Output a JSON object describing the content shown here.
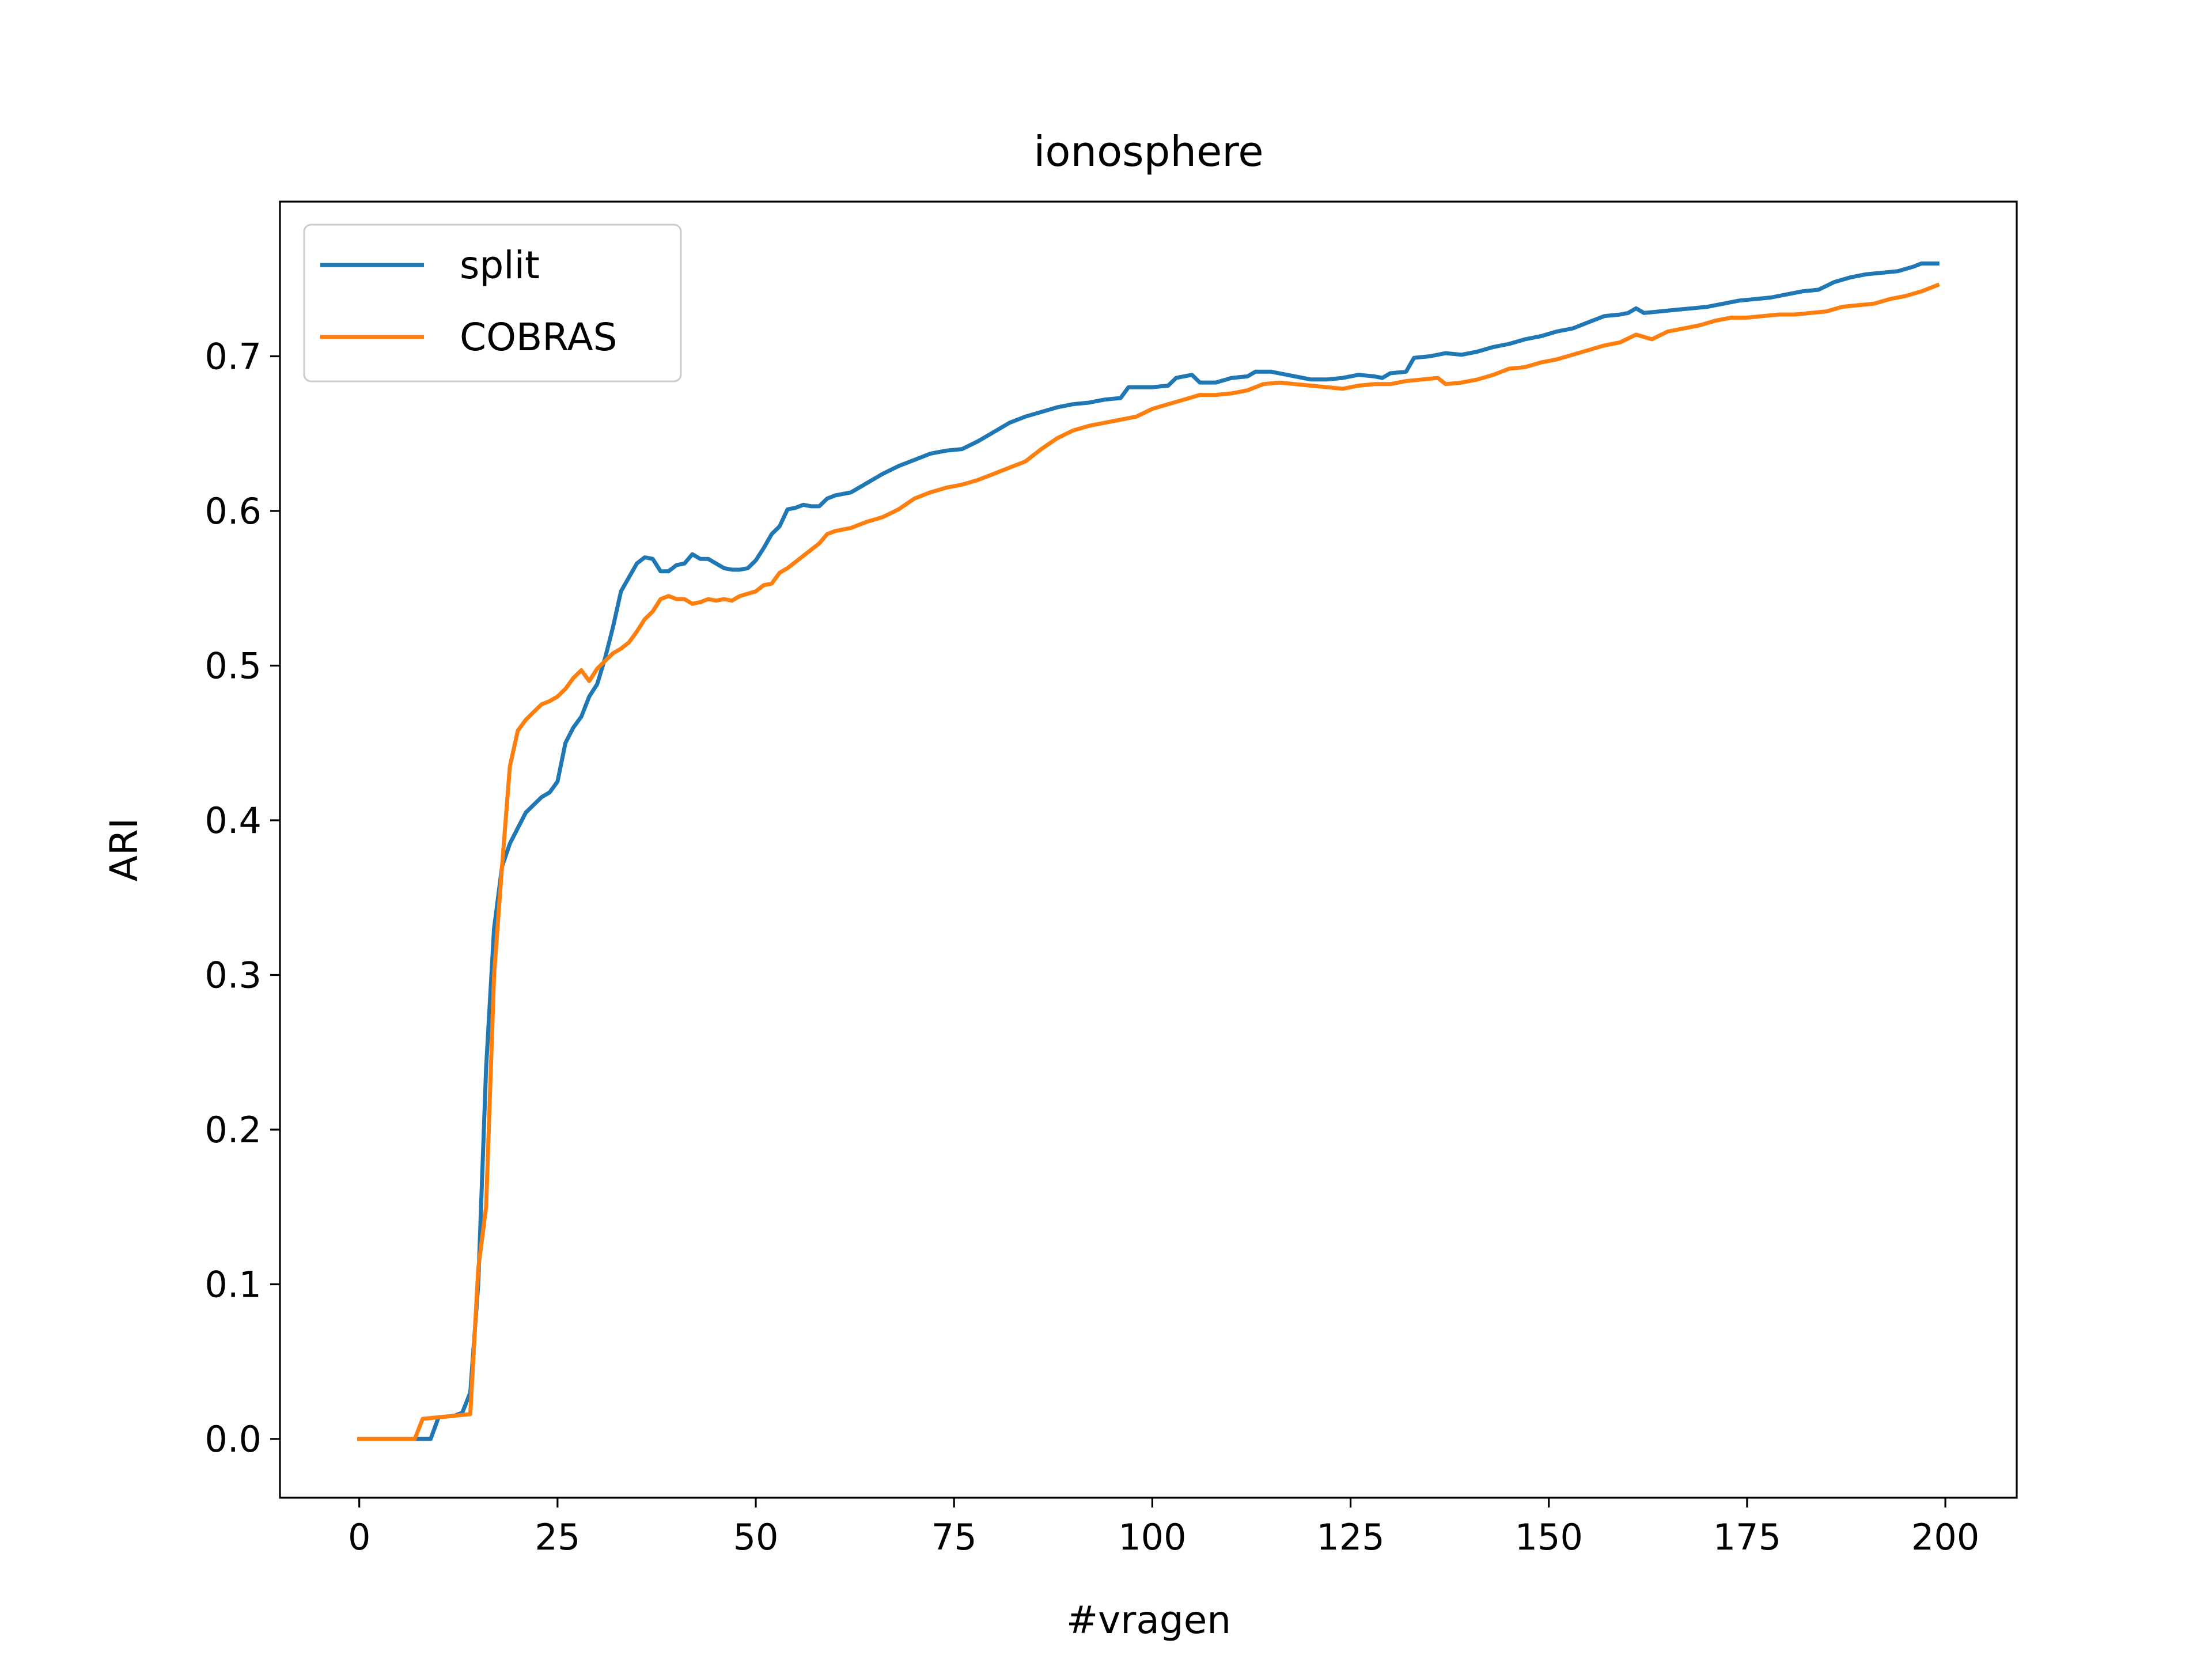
{
  "chart_data": {
    "type": "line",
    "title": "ionosphere",
    "xlabel": "#vragen",
    "ylabel": "ARI",
    "xlim": [
      -10,
      209
    ],
    "ylim": [
      -0.038,
      0.8
    ],
    "xticks": [
      0,
      25,
      50,
      75,
      100,
      125,
      150,
      175,
      200
    ],
    "xtick_labels": [
      "0",
      "25",
      "50",
      "75",
      "100",
      "125",
      "150",
      "175",
      "200"
    ],
    "yticks": [
      0.0,
      0.1,
      0.2,
      0.3,
      0.4,
      0.5,
      0.6,
      0.7
    ],
    "ytick_labels": [
      "0.0",
      "0.1",
      "0.2",
      "0.3",
      "0.4",
      "0.5",
      "0.6",
      "0.7"
    ],
    "grid": false,
    "legend_position": "upper-left",
    "series": [
      {
        "name": "split",
        "color": "#1f77b4",
        "points": [
          [
            0,
            0.0
          ],
          [
            7,
            0.0
          ],
          [
            9,
            0.0
          ],
          [
            10,
            0.014
          ],
          [
            12,
            0.015
          ],
          [
            13,
            0.017
          ],
          [
            14,
            0.03
          ],
          [
            15,
            0.1
          ],
          [
            16,
            0.24
          ],
          [
            17,
            0.33
          ],
          [
            18,
            0.37
          ],
          [
            19,
            0.385
          ],
          [
            20,
            0.395
          ],
          [
            21,
            0.405
          ],
          [
            22,
            0.41
          ],
          [
            23,
            0.415
          ],
          [
            24,
            0.418
          ],
          [
            25,
            0.425
          ],
          [
            26,
            0.45
          ],
          [
            27,
            0.46
          ],
          [
            28,
            0.467
          ],
          [
            29,
            0.48
          ],
          [
            30,
            0.488
          ],
          [
            31,
            0.505
          ],
          [
            32,
            0.525
          ],
          [
            33,
            0.548
          ],
          [
            34,
            0.557
          ],
          [
            35,
            0.566
          ],
          [
            36,
            0.57
          ],
          [
            37,
            0.569
          ],
          [
            38,
            0.561
          ],
          [
            39,
            0.561
          ],
          [
            40,
            0.565
          ],
          [
            41,
            0.566
          ],
          [
            42,
            0.572
          ],
          [
            43,
            0.569
          ],
          [
            44,
            0.569
          ],
          [
            45,
            0.566
          ],
          [
            46,
            0.563
          ],
          [
            47,
            0.562
          ],
          [
            48,
            0.562
          ],
          [
            49,
            0.563
          ],
          [
            50,
            0.568
          ],
          [
            51,
            0.576
          ],
          [
            52,
            0.585
          ],
          [
            53,
            0.59
          ],
          [
            54,
            0.601
          ],
          [
            55,
            0.602
          ],
          [
            56,
            0.604
          ],
          [
            57,
            0.603
          ],
          [
            58,
            0.603
          ],
          [
            59,
            0.608
          ],
          [
            60,
            0.61
          ],
          [
            62,
            0.612
          ],
          [
            64,
            0.618
          ],
          [
            66,
            0.624
          ],
          [
            68,
            0.629
          ],
          [
            70,
            0.633
          ],
          [
            72,
            0.637
          ],
          [
            74,
            0.639
          ],
          [
            76,
            0.64
          ],
          [
            78,
            0.645
          ],
          [
            80,
            0.651
          ],
          [
            82,
            0.657
          ],
          [
            84,
            0.661
          ],
          [
            86,
            0.664
          ],
          [
            88,
            0.667
          ],
          [
            90,
            0.669
          ],
          [
            92,
            0.67
          ],
          [
            94,
            0.672
          ],
          [
            96,
            0.673
          ],
          [
            97,
            0.68
          ],
          [
            100,
            0.68
          ],
          [
            102,
            0.681
          ],
          [
            103,
            0.686
          ],
          [
            105,
            0.688
          ],
          [
            106,
            0.683
          ],
          [
            108,
            0.683
          ],
          [
            110,
            0.686
          ],
          [
            112,
            0.687
          ],
          [
            113,
            0.69
          ],
          [
            115,
            0.69
          ],
          [
            118,
            0.687
          ],
          [
            120,
            0.685
          ],
          [
            122,
            0.685
          ],
          [
            124,
            0.686
          ],
          [
            126,
            0.688
          ],
          [
            128,
            0.687
          ],
          [
            129,
            0.686
          ],
          [
            130,
            0.689
          ],
          [
            132,
            0.69
          ],
          [
            133,
            0.699
          ],
          [
            135,
            0.7
          ],
          [
            137,
            0.702
          ],
          [
            139,
            0.701
          ],
          [
            141,
            0.703
          ],
          [
            143,
            0.706
          ],
          [
            145,
            0.708
          ],
          [
            147,
            0.711
          ],
          [
            149,
            0.713
          ],
          [
            151,
            0.716
          ],
          [
            153,
            0.718
          ],
          [
            155,
            0.722
          ],
          [
            157,
            0.726
          ],
          [
            159,
            0.727
          ],
          [
            160,
            0.728
          ],
          [
            161,
            0.731
          ],
          [
            162,
            0.728
          ],
          [
            164,
            0.729
          ],
          [
            166,
            0.73
          ],
          [
            168,
            0.731
          ],
          [
            170,
            0.732
          ],
          [
            172,
            0.734
          ],
          [
            174,
            0.736
          ],
          [
            176,
            0.737
          ],
          [
            178,
            0.738
          ],
          [
            180,
            0.74
          ],
          [
            182,
            0.742
          ],
          [
            184,
            0.743
          ],
          [
            186,
            0.748
          ],
          [
            188,
            0.751
          ],
          [
            190,
            0.753
          ],
          [
            192,
            0.754
          ],
          [
            194,
            0.755
          ],
          [
            196,
            0.758
          ],
          [
            197,
            0.76
          ],
          [
            199,
            0.76
          ]
        ]
      },
      {
        "name": "COBRAS",
        "color": "#ff7f0e",
        "points": [
          [
            0,
            0.0
          ],
          [
            7,
            0.0
          ],
          [
            8,
            0.013
          ],
          [
            10,
            0.014
          ],
          [
            12,
            0.015
          ],
          [
            14,
            0.016
          ],
          [
            15,
            0.11
          ],
          [
            16,
            0.15
          ],
          [
            17,
            0.3
          ],
          [
            18,
            0.37
          ],
          [
            19,
            0.435
          ],
          [
            20,
            0.458
          ],
          [
            21,
            0.465
          ],
          [
            22,
            0.47
          ],
          [
            23,
            0.475
          ],
          [
            24,
            0.477
          ],
          [
            25,
            0.48
          ],
          [
            26,
            0.485
          ],
          [
            27,
            0.492
          ],
          [
            28,
            0.497
          ],
          [
            29,
            0.49
          ],
          [
            30,
            0.498
          ],
          [
            31,
            0.503
          ],
          [
            32,
            0.508
          ],
          [
            33,
            0.511
          ],
          [
            34,
            0.515
          ],
          [
            35,
            0.522
          ],
          [
            36,
            0.53
          ],
          [
            37,
            0.535
          ],
          [
            38,
            0.543
          ],
          [
            39,
            0.545
          ],
          [
            40,
            0.543
          ],
          [
            41,
            0.543
          ],
          [
            42,
            0.54
          ],
          [
            43,
            0.541
          ],
          [
            44,
            0.543
          ],
          [
            45,
            0.542
          ],
          [
            46,
            0.543
          ],
          [
            47,
            0.542
          ],
          [
            48,
            0.545
          ],
          [
            50,
            0.548
          ],
          [
            51,
            0.552
          ],
          [
            52,
            0.553
          ],
          [
            53,
            0.56
          ],
          [
            54,
            0.563
          ],
          [
            55,
            0.567
          ],
          [
            56,
            0.571
          ],
          [
            57,
            0.575
          ],
          [
            58,
            0.579
          ],
          [
            59,
            0.585
          ],
          [
            60,
            0.587
          ],
          [
            62,
            0.589
          ],
          [
            64,
            0.593
          ],
          [
            66,
            0.596
          ],
          [
            68,
            0.601
          ],
          [
            70,
            0.608
          ],
          [
            72,
            0.612
          ],
          [
            74,
            0.615
          ],
          [
            76,
            0.617
          ],
          [
            78,
            0.62
          ],
          [
            80,
            0.624
          ],
          [
            82,
            0.628
          ],
          [
            84,
            0.632
          ],
          [
            86,
            0.64
          ],
          [
            88,
            0.647
          ],
          [
            90,
            0.652
          ],
          [
            92,
            0.655
          ],
          [
            94,
            0.657
          ],
          [
            96,
            0.659
          ],
          [
            98,
            0.661
          ],
          [
            100,
            0.666
          ],
          [
            102,
            0.669
          ],
          [
            104,
            0.672
          ],
          [
            106,
            0.675
          ],
          [
            108,
            0.675
          ],
          [
            110,
            0.676
          ],
          [
            112,
            0.678
          ],
          [
            114,
            0.682
          ],
          [
            116,
            0.683
          ],
          [
            118,
            0.682
          ],
          [
            120,
            0.681
          ],
          [
            122,
            0.68
          ],
          [
            124,
            0.679
          ],
          [
            126,
            0.681
          ],
          [
            128,
            0.682
          ],
          [
            130,
            0.682
          ],
          [
            132,
            0.684
          ],
          [
            134,
            0.685
          ],
          [
            136,
            0.686
          ],
          [
            137,
            0.682
          ],
          [
            139,
            0.683
          ],
          [
            141,
            0.685
          ],
          [
            143,
            0.688
          ],
          [
            145,
            0.692
          ],
          [
            147,
            0.693
          ],
          [
            149,
            0.696
          ],
          [
            151,
            0.698
          ],
          [
            153,
            0.701
          ],
          [
            155,
            0.704
          ],
          [
            157,
            0.707
          ],
          [
            159,
            0.709
          ],
          [
            161,
            0.714
          ],
          [
            163,
            0.711
          ],
          [
            165,
            0.716
          ],
          [
            167,
            0.718
          ],
          [
            169,
            0.72
          ],
          [
            171,
            0.723
          ],
          [
            173,
            0.725
          ],
          [
            175,
            0.725
          ],
          [
            177,
            0.726
          ],
          [
            179,
            0.727
          ],
          [
            181,
            0.727
          ],
          [
            183,
            0.728
          ],
          [
            185,
            0.729
          ],
          [
            187,
            0.732
          ],
          [
            189,
            0.733
          ],
          [
            191,
            0.734
          ],
          [
            193,
            0.737
          ],
          [
            195,
            0.739
          ],
          [
            197,
            0.742
          ],
          [
            199,
            0.746
          ]
        ]
      }
    ]
  }
}
